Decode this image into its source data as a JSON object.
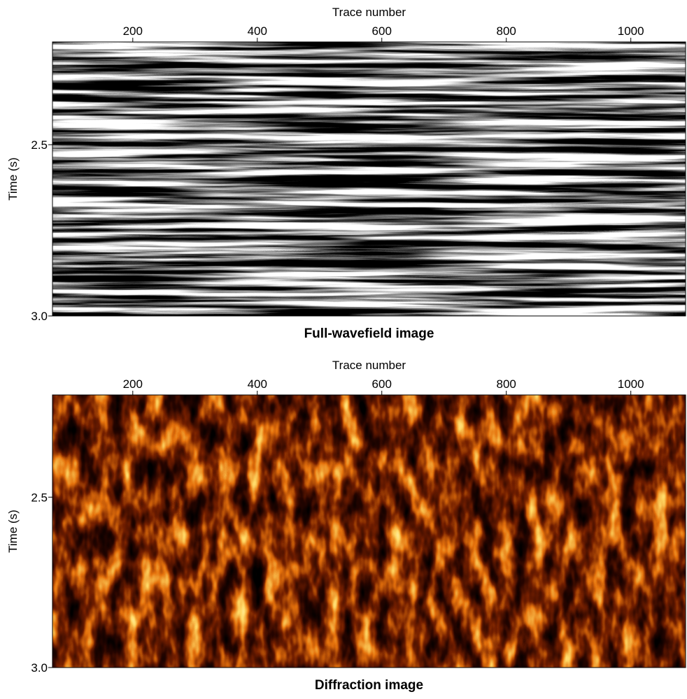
{
  "chart_data": [
    {
      "type": "image",
      "title": "Full-wavefield image",
      "xlabel": "Trace number",
      "ylabel": "Time (s)",
      "xlim": [
        71,
        1088
      ],
      "ylim": [
        3.0,
        2.2
      ],
      "xticks": [
        200,
        400,
        600,
        800,
        1000
      ],
      "yticks": [
        2.5,
        {
          "value": 3,
          "label": "3.0"
        }
      ],
      "colormap": "gray"
    },
    {
      "type": "image",
      "title": "Diffraction image",
      "xlabel": "Trace number",
      "ylabel": "Time (s)",
      "xlim": [
        71,
        1088
      ],
      "ylim": [
        3.0,
        2.2
      ],
      "xticks": [
        200,
        400,
        600,
        800,
        1000
      ],
      "yticks": [
        2.5,
        {
          "value": 3,
          "label": "3.0"
        }
      ],
      "colormap": "afmhot"
    }
  ]
}
